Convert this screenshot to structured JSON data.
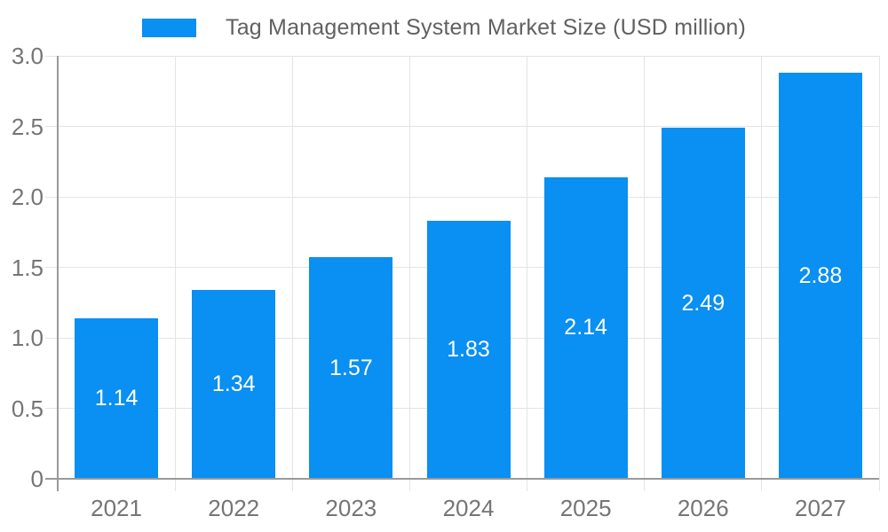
{
  "legend": {
    "label": "Tag Management System Market Size (USD million)"
  },
  "colors": {
    "bar": "#0A8FF2",
    "grid": "#e4e4e4",
    "axis": "#9a9a9a",
    "tick_label": "#757575",
    "bar_label": "#ffffff",
    "legend_text": "#616161",
    "background": "#ffffff"
  },
  "chart_data": {
    "type": "bar",
    "title": "Tag Management System Market Size (USD million)",
    "categories": [
      "2021",
      "2022",
      "2023",
      "2024",
      "2025",
      "2026",
      "2027"
    ],
    "values": [
      1.14,
      1.34,
      1.57,
      1.83,
      2.14,
      2.49,
      2.88
    ],
    "bar_labels": [
      "1.14",
      "1.34",
      "1.57",
      "1.83",
      "2.14",
      "2.49",
      "2.88"
    ],
    "xlabel": "",
    "ylabel": "",
    "ylim": [
      0,
      3
    ],
    "yticks": [
      0,
      0.5,
      1,
      1.5,
      2,
      2.5,
      3
    ],
    "ytick_labels": [
      "0",
      "0.5",
      "1.0",
      "1.5",
      "2.0",
      "2.5",
      "3.0"
    ],
    "grid": true,
    "legend_position": "top"
  }
}
